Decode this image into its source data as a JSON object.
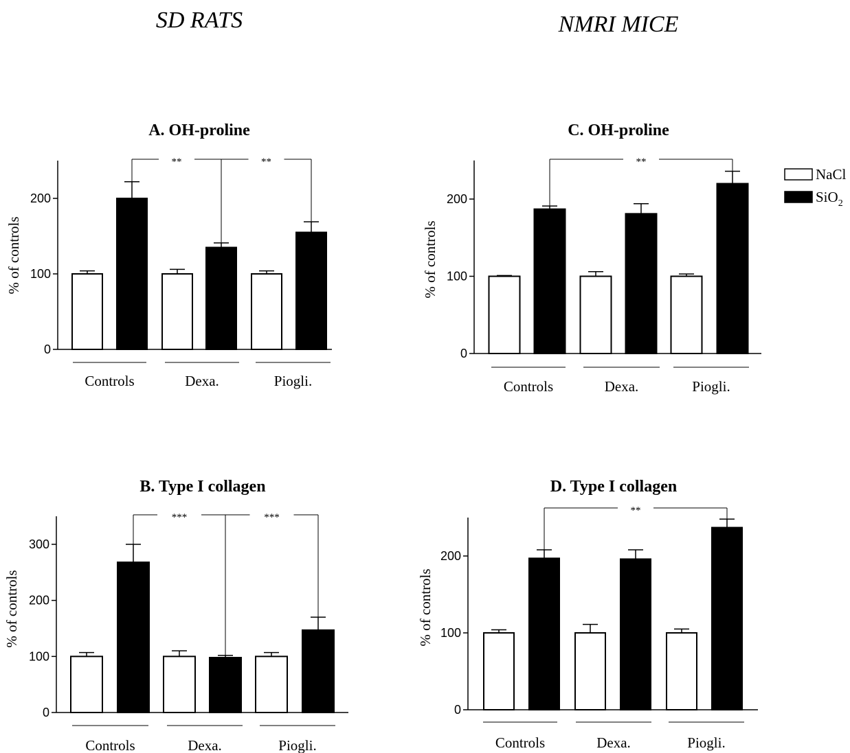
{
  "figure": {
    "column_titles": [
      "SD RATS",
      "NMRI MICE"
    ],
    "legend": {
      "entries": [
        {
          "label": "NaCl",
          "color": "#ffffff"
        },
        {
          "label": "SiO",
          "subscript": "2",
          "color": "#000000"
        }
      ]
    }
  },
  "chart_data": [
    {
      "type": "bar",
      "title": "A. OH-proline",
      "ylabel": "% of controls",
      "ylim": [
        0,
        250
      ],
      "yticks": [
        0,
        100,
        200
      ],
      "categories": [
        "Controls",
        "Dexa.",
        "Piogli."
      ],
      "series": [
        {
          "name": "NaCl",
          "color": "#ffffff",
          "values": [
            100,
            100,
            100
          ],
          "errors": [
            4,
            6,
            4
          ]
        },
        {
          "name": "SiO2",
          "color": "#000000",
          "values": [
            200,
            135,
            155
          ],
          "errors": [
            22,
            6,
            14
          ]
        }
      ],
      "significance": [
        {
          "from": [
            0,
            1
          ],
          "to": [
            1,
            1
          ],
          "label": "**"
        },
        {
          "from": [
            1,
            1
          ],
          "to": [
            2,
            1
          ],
          "label": "**"
        }
      ]
    },
    {
      "type": "bar",
      "title": "B. Type I collagen",
      "ylabel": "% of controls",
      "ylim": [
        0,
        350
      ],
      "yticks": [
        0,
        100,
        200,
        300
      ],
      "categories": [
        "Controls",
        "Dexa.",
        "Piogli."
      ],
      "series": [
        {
          "name": "NaCl",
          "color": "#ffffff",
          "values": [
            100,
            100,
            100
          ],
          "errors": [
            7,
            10,
            7
          ]
        },
        {
          "name": "SiO2",
          "color": "#000000",
          "values": [
            268,
            98,
            147
          ],
          "errors": [
            32,
            4,
            23
          ]
        }
      ],
      "significance": [
        {
          "from": [
            0,
            1
          ],
          "to": [
            1,
            1
          ],
          "label": "***"
        },
        {
          "from": [
            1,
            1
          ],
          "to": [
            2,
            1
          ],
          "label": "***"
        }
      ]
    },
    {
      "type": "bar",
      "title": "C. OH-proline",
      "ylabel": "% of controls",
      "ylim": [
        0,
        250
      ],
      "yticks": [
        0,
        100,
        200
      ],
      "categories": [
        "Controls",
        "Dexa.",
        "Piogli."
      ],
      "series": [
        {
          "name": "NaCl",
          "color": "#ffffff",
          "values": [
            100,
            100,
            100
          ],
          "errors": [
            1,
            6,
            3
          ]
        },
        {
          "name": "SiO2",
          "color": "#000000",
          "values": [
            187,
            181,
            220
          ],
          "errors": [
            4,
            13,
            16
          ]
        }
      ],
      "significance": [
        {
          "from": [
            0,
            1
          ],
          "to": [
            2,
            1
          ],
          "label": "**"
        }
      ]
    },
    {
      "type": "bar",
      "title": "D. Type I collagen",
      "ylabel": "% of controls",
      "ylim": [
        0,
        250
      ],
      "yticks": [
        0,
        100,
        200
      ],
      "categories": [
        "Controls",
        "Dexa.",
        "Piogli."
      ],
      "series": [
        {
          "name": "NaCl",
          "color": "#ffffff",
          "values": [
            100,
            100,
            100
          ],
          "errors": [
            4,
            11,
            5
          ]
        },
        {
          "name": "SiO2",
          "color": "#000000",
          "values": [
            197,
            196,
            237
          ],
          "errors": [
            11,
            12,
            11
          ]
        }
      ],
      "significance": [
        {
          "from": [
            0,
            1
          ],
          "to": [
            2,
            1
          ],
          "label": "**"
        }
      ]
    }
  ]
}
